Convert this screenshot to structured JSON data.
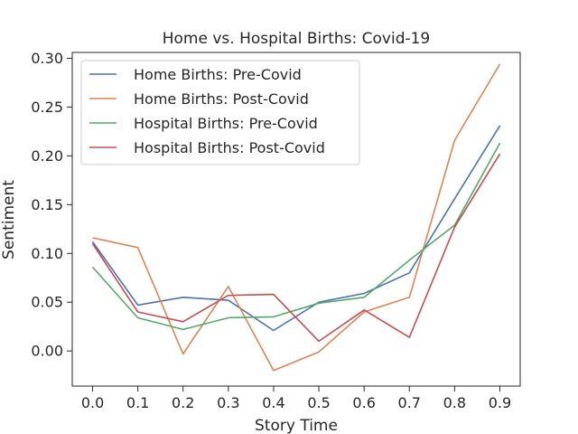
{
  "chart_data": {
    "type": "line",
    "title": "Home vs. Hospital Births: Covid-19",
    "xlabel": "Story Time",
    "ylabel": "Sentiment",
    "x": [
      0.0,
      0.1,
      0.2,
      0.3,
      0.4,
      0.5,
      0.6,
      0.7,
      0.8,
      0.9
    ],
    "xlim": [
      -0.045,
      0.945
    ],
    "ylim": [
      -0.036,
      0.306
    ],
    "xticks": [
      "0.0",
      "0.1",
      "0.2",
      "0.3",
      "0.4",
      "0.5",
      "0.6",
      "0.7",
      "0.8",
      "0.9"
    ],
    "yticks": [
      "0.00",
      "0.05",
      "0.10",
      "0.15",
      "0.20",
      "0.25",
      "0.30"
    ],
    "ytick_values": [
      0.0,
      0.05,
      0.1,
      0.15,
      0.2,
      0.25,
      0.3
    ],
    "grid": false,
    "legend_position": "top-left",
    "series": [
      {
        "name": "Home Births: Pre-Covid",
        "color": "#4c72b0",
        "values": [
          0.112,
          0.047,
          0.055,
          0.052,
          0.021,
          0.05,
          0.059,
          0.08,
          0.156,
          0.231
        ]
      },
      {
        "name": "Home Births: Post-Covid",
        "color": "#dd8452",
        "values": [
          0.116,
          0.106,
          -0.003,
          0.066,
          -0.02,
          -0.001,
          0.04,
          0.055,
          0.216,
          0.294
        ]
      },
      {
        "name": "Hospital Births: Pre-Covid",
        "color": "#55a868",
        "values": [
          0.086,
          0.034,
          0.022,
          0.034,
          0.035,
          0.049,
          0.055,
          0.093,
          0.129,
          0.213
        ]
      },
      {
        "name": "Hospital Births: Post-Covid",
        "color": "#c44e52",
        "values": [
          0.11,
          0.04,
          0.03,
          0.057,
          0.058,
          0.01,
          0.042,
          0.014,
          0.127,
          0.202
        ]
      }
    ]
  }
}
